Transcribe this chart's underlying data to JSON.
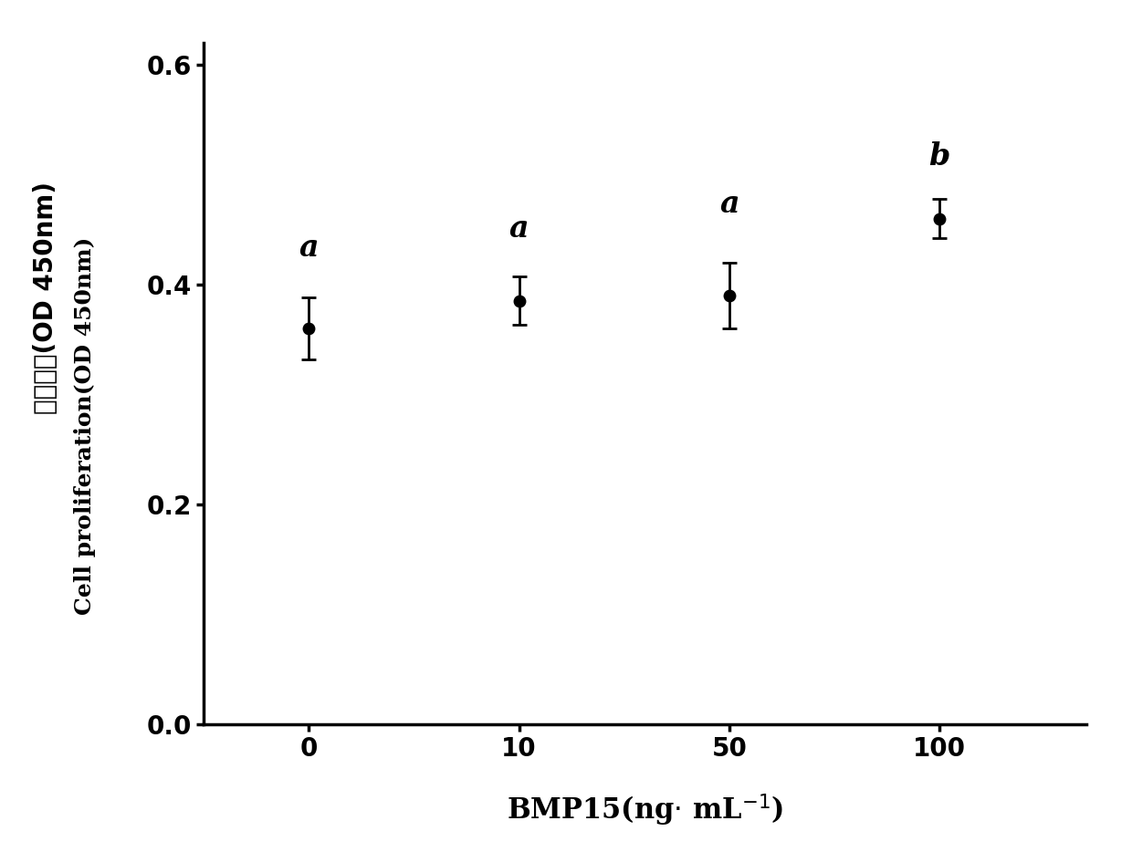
{
  "x_positions": [
    0,
    1,
    2,
    3
  ],
  "x_labels": [
    "0",
    "10",
    "50",
    "100"
  ],
  "y": [
    0.36,
    0.385,
    0.39,
    0.46
  ],
  "yerr": [
    0.028,
    0.022,
    0.03,
    0.018
  ],
  "stat_labels": [
    "a",
    "a",
    "a",
    "b"
  ],
  "xlabel_main": "BMP15(ng",
  "ylim": [
    0.0,
    0.62
  ],
  "yticks": [
    0.0,
    0.2,
    0.4,
    0.6
  ],
  "line_color": "#000000",
  "marker_color": "#000000",
  "marker_size": 9,
  "line_width": 2.5,
  "tick_fontsize": 20,
  "stat_label_fontsize": 24,
  "background_color": "#ffffff"
}
